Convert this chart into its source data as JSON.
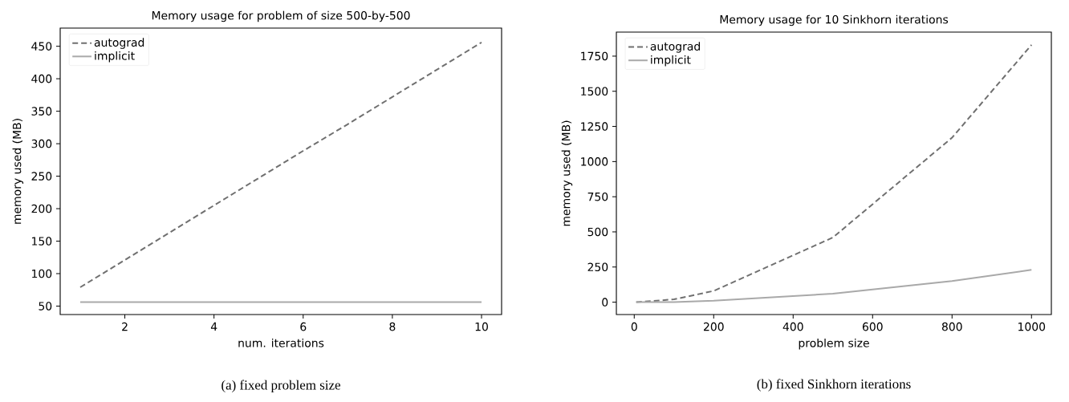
{
  "chart_data": [
    {
      "type": "line",
      "title": "Memory usage for problem of size 500-by-500",
      "xlabel": "num. iterations",
      "ylabel": "memory used (MB)",
      "annotations": [
        "(a) fixed problem size"
      ],
      "legend": "top left",
      "xlim": [
        0.55,
        10.45
      ],
      "ylim": [
        37,
        478
      ],
      "xticks": [
        2,
        4,
        6,
        8,
        10
      ],
      "yticks": [
        50,
        100,
        150,
        200,
        250,
        300,
        350,
        400,
        450
      ],
      "x": [
        1,
        2,
        3,
        4,
        5,
        6,
        7,
        8,
        9,
        10
      ],
      "series": [
        {
          "name": "autograd",
          "color": "#707070",
          "line_style": "dashed",
          "values": [
            79,
            121,
            163,
            205,
            247,
            289,
            330,
            372,
            414,
            456
          ]
        },
        {
          "name": "implicit",
          "color": "#a9a9a9",
          "line_style": "solid",
          "values": [
            56,
            56,
            56,
            56,
            56,
            56,
            56,
            56,
            56,
            56
          ]
        }
      ]
    },
    {
      "type": "line",
      "title": "Memory usage for 10 Sinkhorn iterations",
      "xlabel": "problem size",
      "ylabel": "memory used (MB)",
      "annotations": [
        "(b) fixed Sinkhorn iterations"
      ],
      "legend": "top left",
      "xlim": [
        -45,
        1050
      ],
      "ylim": [
        -88,
        1921
      ],
      "xticks": [
        0,
        200,
        400,
        600,
        800,
        1000
      ],
      "yticks": [
        0,
        250,
        500,
        750,
        1000,
        1250,
        1500,
        1750
      ],
      "x": [
        5,
        100,
        200,
        500,
        800,
        1000
      ],
      "series": [
        {
          "name": "autograd",
          "color": "#707070",
          "line_style": "dashed",
          "values": [
            0,
            20,
            80,
            460,
            1170,
            1830
          ]
        },
        {
          "name": "implicit",
          "color": "#a9a9a9",
          "line_style": "solid",
          "values": [
            0,
            0,
            10,
            60,
            150,
            230
          ]
        }
      ]
    }
  ]
}
